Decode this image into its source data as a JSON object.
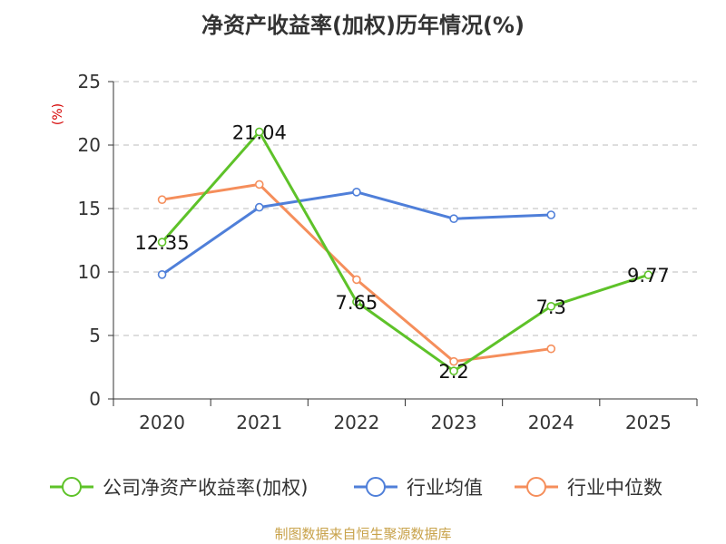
{
  "chart_data": {
    "type": "line",
    "title": "净资产收益率(加权)历年情况(%)",
    "ylabel": "(%)",
    "xlabel": "",
    "categories": [
      "2020",
      "2021",
      "2022",
      "2023",
      "2024",
      "2025"
    ],
    "ylim": [
      0,
      25
    ],
    "yticks": [
      0,
      5,
      10,
      15,
      20,
      25
    ],
    "grid": true,
    "legend_position": "bottom",
    "series": [
      {
        "name": "公司净资产收益率(加权)",
        "color": "#5ec229",
        "values": [
          12.35,
          21.04,
          7.65,
          2.2,
          7.3,
          9.77
        ],
        "labels": [
          "12.35",
          "21.04",
          "7.65",
          "2.2",
          "7.3",
          "9.77"
        ]
      },
      {
        "name": "行业均值",
        "color": "#4f7fd9",
        "values": [
          9.8,
          15.1,
          16.3,
          14.2,
          14.5,
          null
        ]
      },
      {
        "name": "行业中位数",
        "color": "#f58e5b",
        "values": [
          15.7,
          16.9,
          9.4,
          2.95,
          3.95,
          null
        ]
      }
    ]
  },
  "footer": {
    "source": "制图数据来自恒生聚源数据库"
  }
}
